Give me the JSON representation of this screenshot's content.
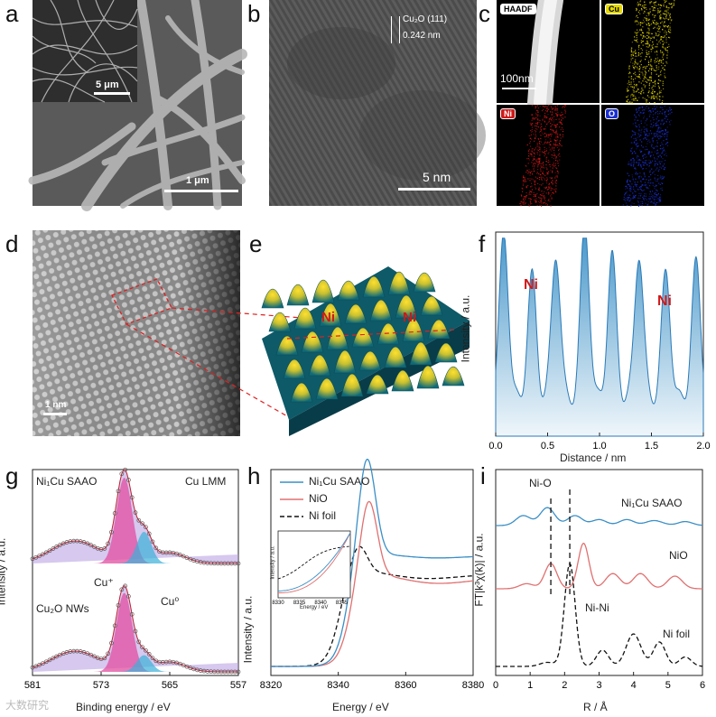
{
  "panels": {
    "a": {
      "letter": "a",
      "scale_inset": "5 μm",
      "scale_main": "1 μm"
    },
    "b": {
      "letter": "b",
      "lattice": "Cu₂O (111)",
      "spacing": "0.242 nm",
      "scale": "5 nm"
    },
    "c": {
      "letter": "c",
      "maps": [
        "HAADF",
        "Cu",
        "Ni",
        "O"
      ],
      "scale": "100nm",
      "colors": {
        "Cu": "#e5d800",
        "Ni": "#d01818",
        "O": "#1a2fd0"
      }
    },
    "d": {
      "letter": "d",
      "scale": "1 nm"
    },
    "e": {
      "letter": "e",
      "labels": [
        "Ni",
        "Ni"
      ]
    },
    "f": {
      "letter": "f",
      "labels": [
        "Ni",
        "Ni"
      ],
      "ylabel": "Intensity / a.u.",
      "xlabel": "Distance / nm",
      "xticks": [
        "0.0",
        "0.5",
        "1.0",
        "1.5",
        "2.0"
      ]
    },
    "g": {
      "letter": "g",
      "ylabel": "Intensity / a.u.",
      "xlabel": "Binding energy / eV",
      "xticks": [
        "581",
        "573",
        "565",
        "557"
      ],
      "title": "Cu LMM",
      "label_top": "Ni₁Cu SAAO",
      "label_bottom": "Cu₂O NWs",
      "cu_plus": "Cu⁺",
      "cu_zero": "Cu⁰"
    },
    "h": {
      "letter": "h",
      "ylabel": "Intensity / a.u.",
      "xlabel": "Energy / eV",
      "xticks": [
        "8320",
        "8340",
        "8360",
        "8380"
      ],
      "legend": [
        "Ni₁Cu SAAO",
        "NiO",
        "Ni foil"
      ],
      "inset_ylabel": "Intensity / a.u.",
      "inset_xlabel": "Energy / eV",
      "inset_xticks": [
        "8330",
        "8335",
        "8340",
        "8345"
      ]
    },
    "i": {
      "letter": "i",
      "ylabel": "FT|k³χ(k)| / a.u.",
      "xlabel": "R / Å",
      "xticks": [
        "0",
        "1",
        "2",
        "3",
        "4",
        "5",
        "6"
      ],
      "labels": [
        "Ni₁Cu SAAO",
        "NiO",
        "Ni foil"
      ],
      "bond1": "Ni-O",
      "bond2": "Ni-Ni"
    }
  },
  "colors": {
    "blue": "#3a8fc6",
    "red": "#e07070",
    "black": "#111111"
  },
  "watermark": "大数研究"
}
